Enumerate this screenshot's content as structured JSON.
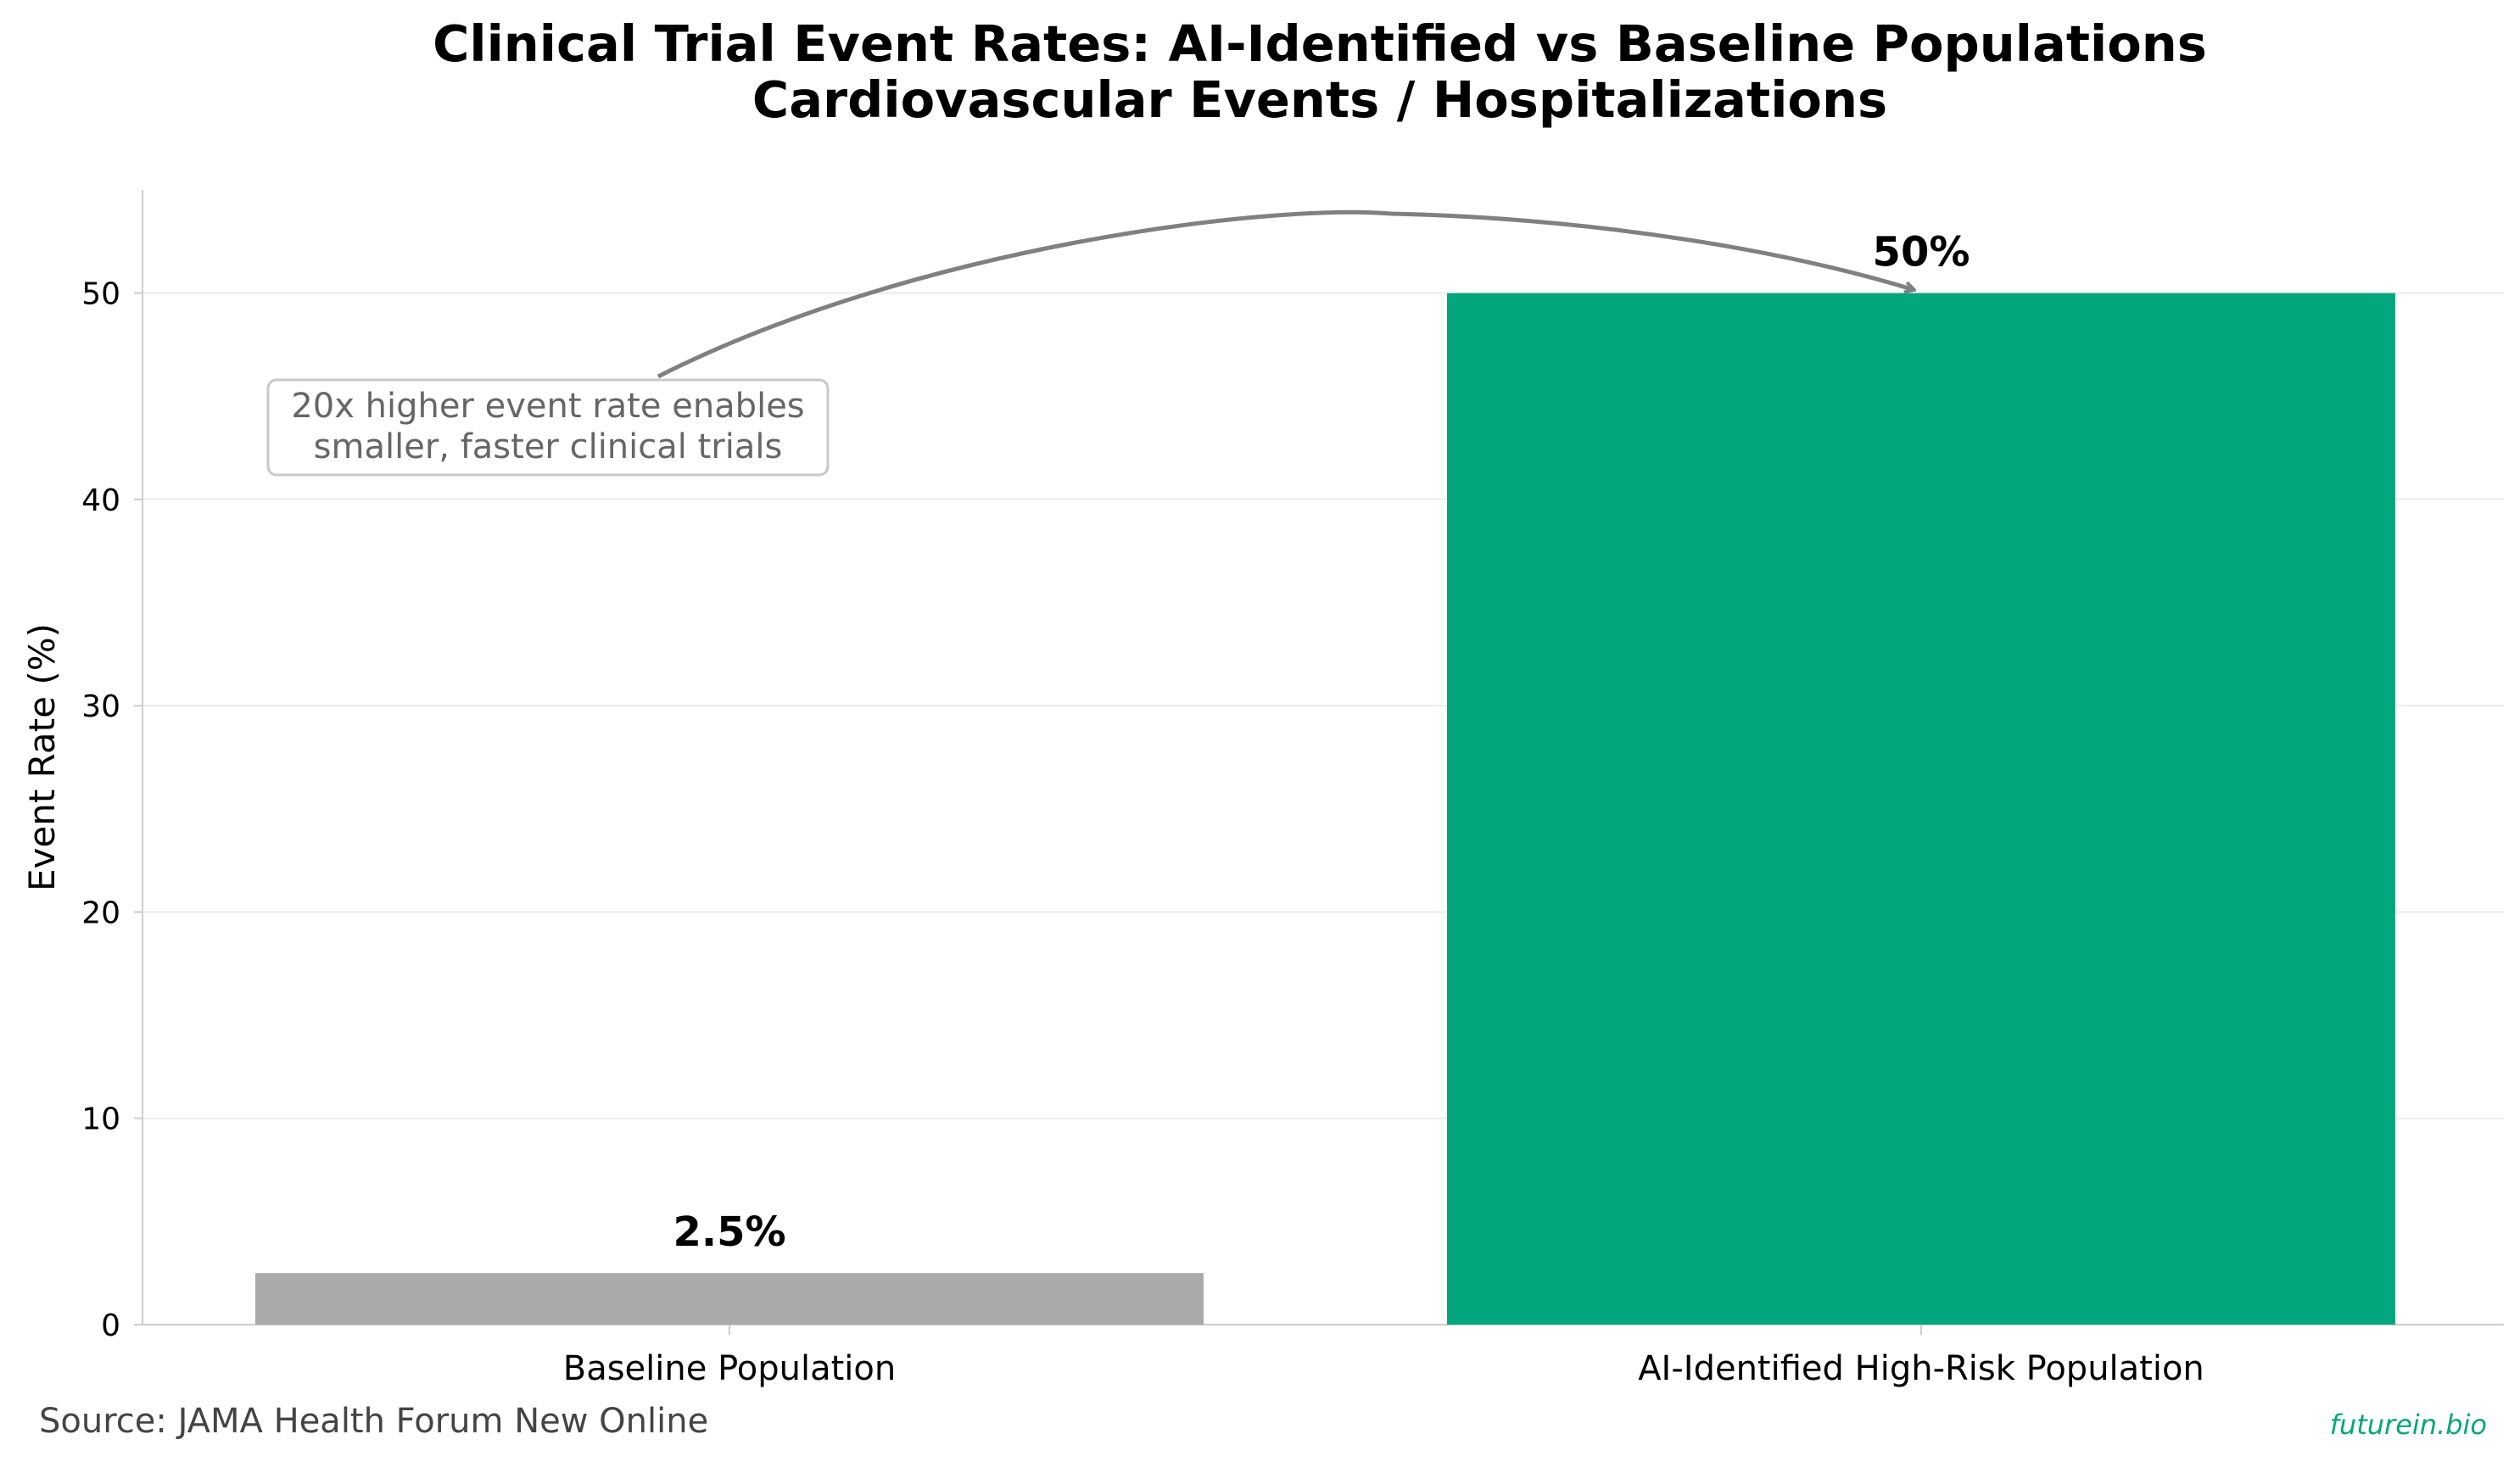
{
  "chart_data": {
    "type": "bar",
    "title": "Clinical Trial Event Rates: AI-Identified vs Baseline Populations",
    "subtitle": "Cardiovascular Events / Hospitalizations",
    "xlabel": "",
    "ylabel": "Event Rate (%)",
    "categories": [
      "Baseline Population",
      "AI-Identified High-Risk Population"
    ],
    "values": [
      2.5,
      50
    ],
    "value_labels": [
      "2.5%",
      "50%"
    ],
    "colors": [
      "#aaaaaa",
      "#04a77d"
    ],
    "ylim": [
      0,
      55
    ],
    "yticks": [
      0,
      10,
      20,
      30,
      40,
      50
    ],
    "grid": "y",
    "annotation": {
      "lines": [
        "20x higher event rate enables",
        "smaller, faster clinical trials"
      ],
      "arrow_to_category": "AI-Identified High-Risk Population"
    }
  },
  "footer": {
    "source": "Source: JAMA Health Forum New Online",
    "brand": "futurein.bio",
    "brand_color": "#04a77d"
  }
}
